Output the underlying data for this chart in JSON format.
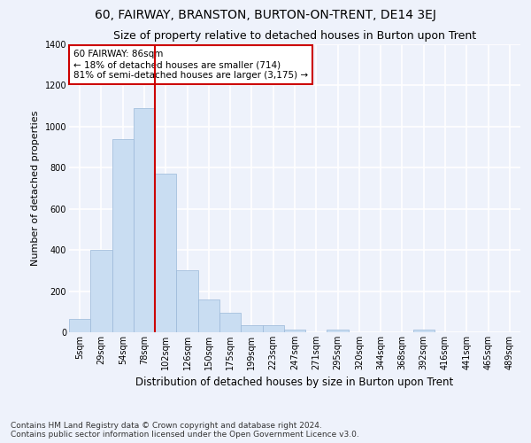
{
  "title": "60, FAIRWAY, BRANSTON, BURTON-ON-TRENT, DE14 3EJ",
  "subtitle": "Size of property relative to detached houses in Burton upon Trent",
  "xlabel": "Distribution of detached houses by size in Burton upon Trent",
  "ylabel": "Number of detached properties",
  "categories": [
    "5sqm",
    "29sqm",
    "54sqm",
    "78sqm",
    "102sqm",
    "126sqm",
    "150sqm",
    "175sqm",
    "199sqm",
    "223sqm",
    "247sqm",
    "271sqm",
    "295sqm",
    "320sqm",
    "344sqm",
    "368sqm",
    "392sqm",
    "416sqm",
    "441sqm",
    "465sqm",
    "489sqm"
  ],
  "values": [
    65,
    400,
    940,
    1090,
    770,
    300,
    160,
    95,
    35,
    35,
    15,
    0,
    15,
    0,
    0,
    0,
    15,
    0,
    0,
    0,
    0
  ],
  "bar_color": "#c9ddf2",
  "bar_edge_color": "#9ab8d8",
  "vline_x": 3.5,
  "vline_color": "#cc0000",
  "annotation_text": "60 FAIRWAY: 86sqm\n← 18% of detached houses are smaller (714)\n81% of semi-detached houses are larger (3,175) →",
  "annotation_box_color": "#ffffff",
  "annotation_box_edge": "#cc0000",
  "ylim": [
    0,
    1400
  ],
  "yticks": [
    0,
    200,
    400,
    600,
    800,
    1000,
    1200,
    1400
  ],
  "background_color": "#eef2fb",
  "grid_color": "#ffffff",
  "footer_line1": "Contains HM Land Registry data © Crown copyright and database right 2024.",
  "footer_line2": "Contains public sector information licensed under the Open Government Licence v3.0.",
  "title_fontsize": 10,
  "subtitle_fontsize": 9,
  "xlabel_fontsize": 8.5,
  "ylabel_fontsize": 8,
  "tick_fontsize": 7,
  "annotation_fontsize": 7.5,
  "footer_fontsize": 6.5
}
